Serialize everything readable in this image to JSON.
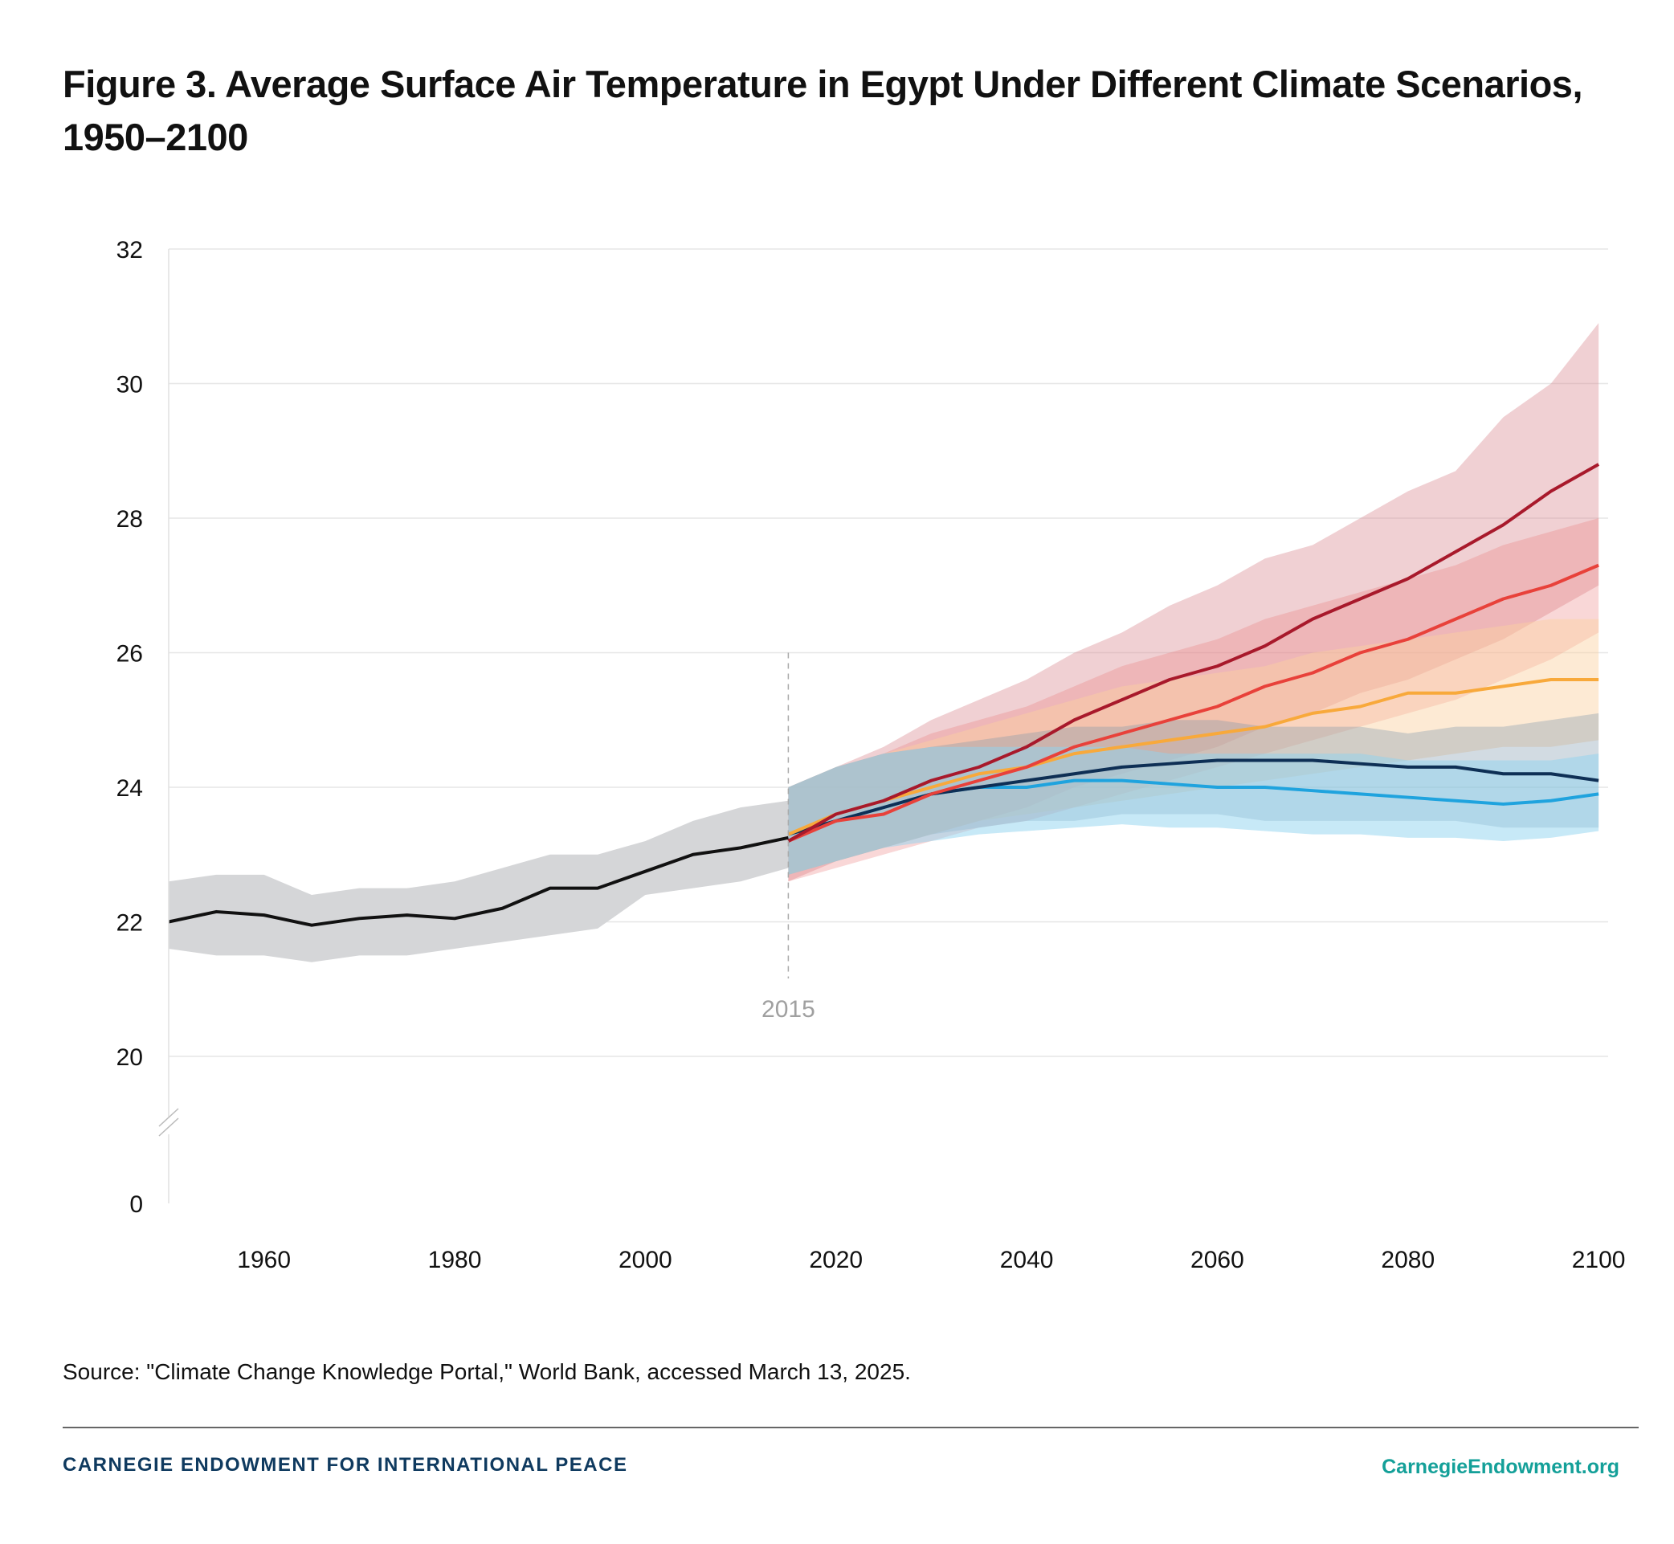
{
  "title": "Figure 3. Average Surface Air Temperature in Egypt Under Different Climate Scenarios, 1950–2100",
  "source": "Source: \"Climate Change Knowledge Portal,\" World Bank, accessed March 13, 2025.",
  "footer": {
    "org": "CARNEGIE ENDOWMENT FOR INTERNATIONAL PEACE",
    "site": "CarnegieEndowment.org"
  },
  "chart_data": {
    "type": "line",
    "xlim": [
      1950,
      2101
    ],
    "ylim": [
      20,
      32
    ],
    "y_axis_break": "between 0 and 20",
    "yticks": [
      0,
      20,
      22,
      24,
      26,
      28,
      30,
      32
    ],
    "xticks": [
      1960,
      1980,
      2000,
      2020,
      2040,
      2060,
      2080,
      2100
    ],
    "grid": "horizontal",
    "annotation": {
      "x": 2015,
      "label": "2015",
      "style": "dashed vertical line"
    },
    "historical": {
      "color": "#111111",
      "band_color": "#d5d6d8",
      "x": [
        1950,
        1955,
        1960,
        1965,
        1970,
        1975,
        1980,
        1985,
        1990,
        1995,
        2000,
        2005,
        2010,
        2015
      ],
      "values": [
        22.0,
        22.15,
        22.1,
        21.95,
        22.05,
        22.1,
        22.05,
        22.2,
        22.5,
        22.5,
        22.75,
        23.0,
        23.1,
        23.25
      ],
      "lower": [
        21.6,
        21.5,
        21.5,
        21.4,
        21.5,
        21.5,
        21.6,
        21.7,
        21.8,
        21.9,
        22.4,
        22.5,
        22.6,
        22.8
      ],
      "upper": [
        22.6,
        22.7,
        22.7,
        22.4,
        22.5,
        22.5,
        22.6,
        22.8,
        23.0,
        23.0,
        23.2,
        23.5,
        23.7,
        23.8
      ]
    },
    "scenario_x": [
      2015,
      2020,
      2025,
      2030,
      2035,
      2040,
      2045,
      2050,
      2055,
      2060,
      2065,
      2070,
      2075,
      2080,
      2085,
      2090,
      2095,
      2100
    ],
    "series": [
      {
        "color": "#a8192b",
        "band_color": "#d98a90",
        "band_opacity": 0.4,
        "values": [
          23.2,
          23.6,
          23.8,
          24.1,
          24.3,
          24.6,
          25.0,
          25.3,
          25.6,
          25.8,
          26.1,
          26.5,
          26.8,
          27.1,
          27.5,
          27.9,
          28.4,
          28.8
        ],
        "lower": [
          22.6,
          22.9,
          23.1,
          23.3,
          23.5,
          23.7,
          24.0,
          24.2,
          24.4,
          24.6,
          24.9,
          25.1,
          25.4,
          25.6,
          25.9,
          26.2,
          26.6,
          27.0
        ],
        "upper": [
          24.0,
          24.3,
          24.6,
          25.0,
          25.3,
          25.6,
          26.0,
          26.3,
          26.7,
          27.0,
          27.4,
          27.6,
          28.0,
          28.4,
          28.7,
          29.5,
          30.0,
          30.9
        ]
      },
      {
        "color": "#e8413a",
        "band_color": "#ec7b7b",
        "band_opacity": 0.3,
        "values": [
          23.2,
          23.5,
          23.6,
          23.9,
          24.1,
          24.3,
          24.6,
          24.8,
          25.0,
          25.2,
          25.5,
          25.7,
          26.0,
          26.2,
          26.5,
          26.8,
          27.0,
          27.3
        ],
        "lower": [
          22.6,
          22.8,
          23.0,
          23.2,
          23.4,
          23.5,
          23.7,
          23.9,
          24.1,
          24.3,
          24.5,
          24.7,
          24.9,
          25.1,
          25.3,
          25.6,
          25.9,
          26.3
        ],
        "upper": [
          24.0,
          24.3,
          24.5,
          24.8,
          25.0,
          25.2,
          25.5,
          25.8,
          26.0,
          26.2,
          26.5,
          26.7,
          26.9,
          27.1,
          27.3,
          27.6,
          27.8,
          28.0
        ]
      },
      {
        "color": "#f8a93b",
        "band_color": "#fbd0a0",
        "band_opacity": 0.45,
        "values": [
          23.3,
          23.6,
          23.8,
          24.0,
          24.2,
          24.3,
          24.5,
          24.6,
          24.7,
          24.8,
          24.9,
          25.1,
          25.2,
          25.4,
          25.4,
          25.5,
          25.6,
          25.6
        ],
        "lower": [
          22.7,
          22.9,
          23.1,
          23.3,
          23.5,
          23.6,
          23.7,
          23.8,
          23.9,
          24.0,
          24.1,
          24.2,
          24.3,
          24.4,
          24.5,
          24.6,
          24.6,
          24.7
        ],
        "upper": [
          24.0,
          24.3,
          24.5,
          24.7,
          24.9,
          25.1,
          25.3,
          25.5,
          25.6,
          25.7,
          25.8,
          26.0,
          26.1,
          26.2,
          26.3,
          26.4,
          26.5,
          26.5
        ]
      },
      {
        "color": "#0e2f55",
        "band_color": "#7f98ad",
        "band_opacity": 0.35,
        "values": [
          23.3,
          23.5,
          23.7,
          23.9,
          24.0,
          24.1,
          24.2,
          24.3,
          24.35,
          24.4,
          24.4,
          24.4,
          24.35,
          24.3,
          24.3,
          24.2,
          24.2,
          24.1
        ],
        "lower": [
          22.7,
          22.9,
          23.1,
          23.3,
          23.4,
          23.5,
          23.5,
          23.6,
          23.6,
          23.6,
          23.5,
          23.5,
          23.5,
          23.5,
          23.5,
          23.4,
          23.4,
          23.4
        ],
        "upper": [
          24.0,
          24.3,
          24.5,
          24.6,
          24.7,
          24.8,
          24.9,
          24.9,
          25.0,
          25.0,
          24.9,
          24.9,
          24.9,
          24.8,
          24.9,
          24.9,
          25.0,
          25.1
        ]
      },
      {
        "color": "#1fa3de",
        "band_color": "#8fd3f0",
        "band_opacity": 0.5,
        "values": [
          23.3,
          23.5,
          23.7,
          23.9,
          24.0,
          24.0,
          24.1,
          24.1,
          24.05,
          24.0,
          24.0,
          23.95,
          23.9,
          23.85,
          23.8,
          23.75,
          23.8,
          23.9
        ],
        "lower": [
          22.7,
          22.9,
          23.1,
          23.2,
          23.3,
          23.35,
          23.4,
          23.45,
          23.4,
          23.4,
          23.35,
          23.3,
          23.3,
          23.25,
          23.25,
          23.2,
          23.25,
          23.35
        ],
        "upper": [
          24.0,
          24.3,
          24.5,
          24.6,
          24.6,
          24.6,
          24.6,
          24.6,
          24.5,
          24.5,
          24.5,
          24.5,
          24.5,
          24.4,
          24.4,
          24.4,
          24.4,
          24.5
        ]
      }
    ]
  }
}
